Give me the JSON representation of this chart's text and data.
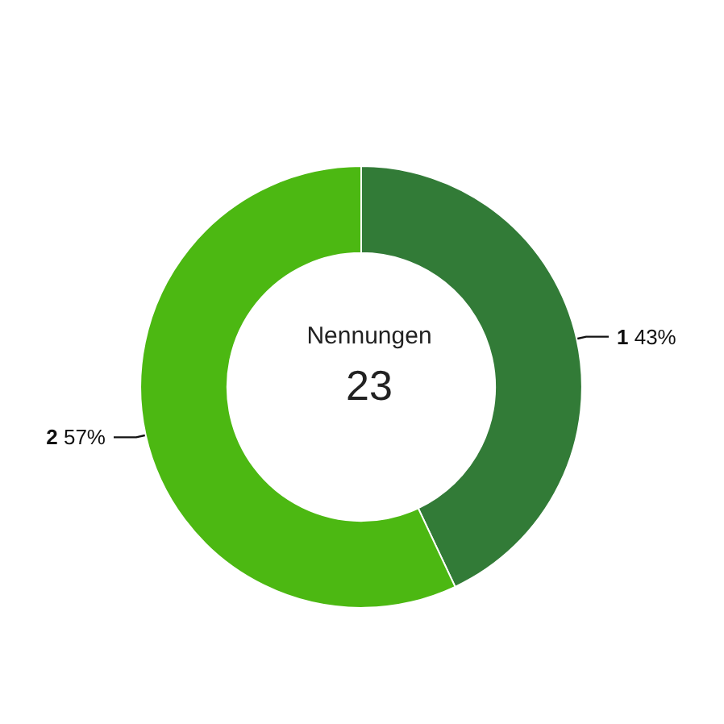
{
  "chart_data": {
    "type": "donut",
    "title": "Nennungen",
    "subtitle": "23",
    "categories": [
      "1",
      "2"
    ],
    "values": [
      43,
      57
    ],
    "value_labels": [
      "43%",
      "57%"
    ],
    "colors": [
      "#327b37",
      "#4cb812"
    ],
    "legend": false
  }
}
